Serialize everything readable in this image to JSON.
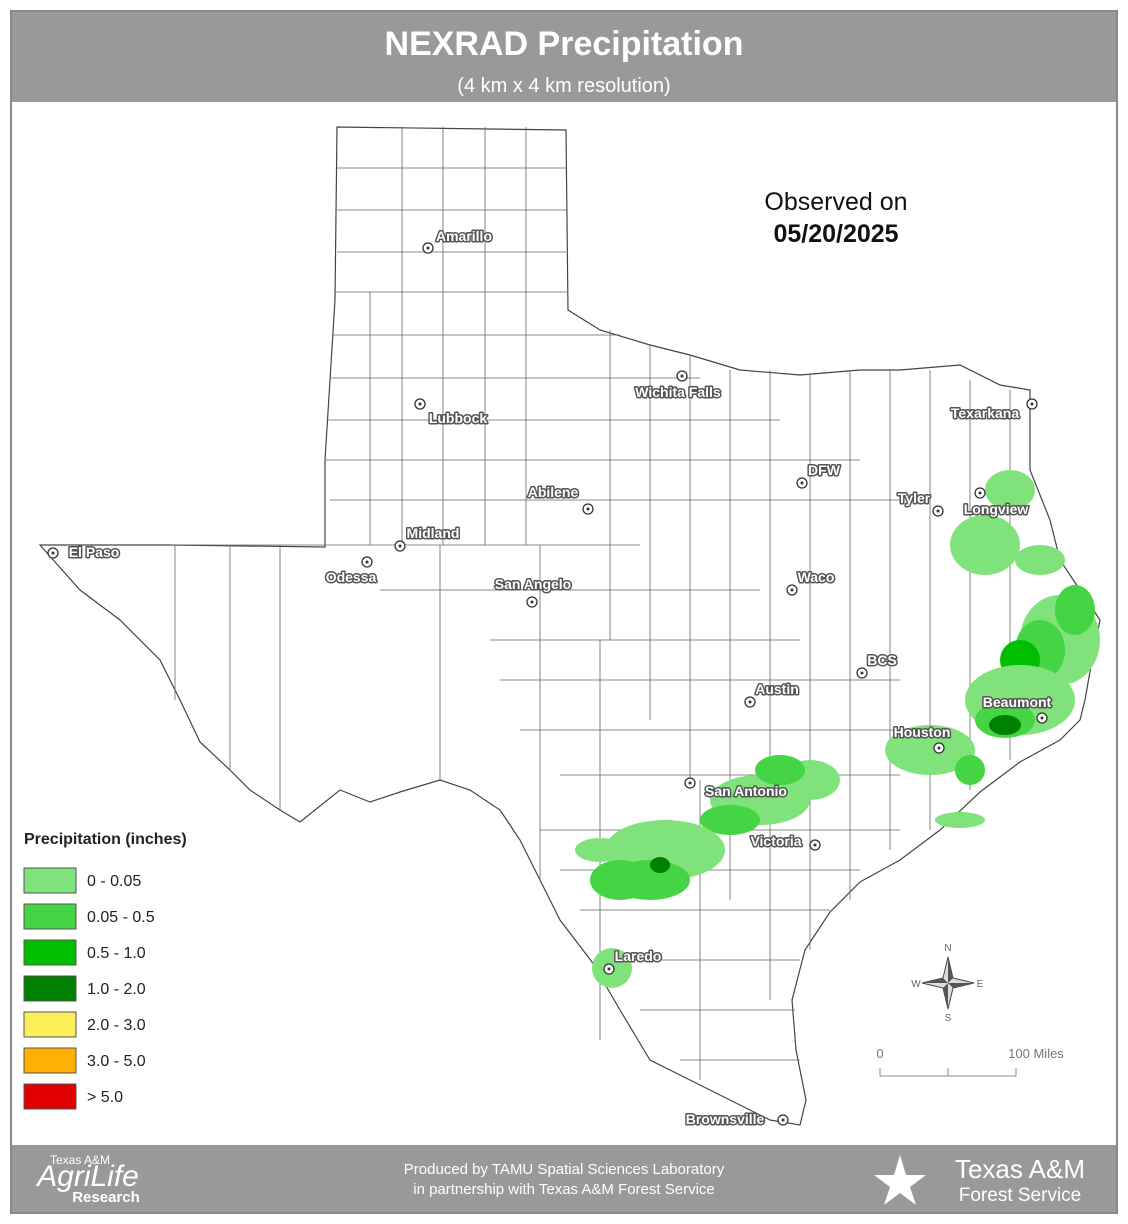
{
  "header": {
    "title": "NEXRAD Precipitation",
    "subtitle": "(4 km x 4 km resolution)"
  },
  "observed": {
    "label": "Observed on",
    "date": "05/20/2025"
  },
  "cities": [
    "Amarillo",
    "Lubbock",
    "Wichita Falls",
    "Texarkana",
    "DFW",
    "Tyler",
    "Longview",
    "Abilene",
    "Midland",
    "Odessa",
    "El Paso",
    "San Angelo",
    "Waco",
    "BCS",
    "Austin",
    "Beaumont",
    "Houston",
    "San Antonio",
    "Victoria",
    "Laredo",
    "Brownsville"
  ],
  "legend": {
    "title": "Precipitation (inches)",
    "items": [
      {
        "label": "0 - 0.05",
        "color": "#80e27a"
      },
      {
        "label": "0.05 - 0.5",
        "color": "#44d444"
      },
      {
        "label": "0.5 - 1.0",
        "color": "#00bf00"
      },
      {
        "label": "1.0 - 2.0",
        "color": "#008000"
      },
      {
        "label": "2.0 - 3.0",
        "color": "#fbee5a"
      },
      {
        "label": "3.0 - 5.0",
        "color": "#ffb000"
      },
      {
        "label": "> 5.0",
        "color": "#e00000"
      }
    ]
  },
  "compass": {
    "n": "N",
    "e": "E",
    "s": "S",
    "w": "W"
  },
  "scale": {
    "start": "0",
    "end": "100 Miles"
  },
  "footer": {
    "line1": "Produced by TAMU Spatial Sciences Laboratory",
    "line2": "in partnership with Texas A&M Forest Service"
  },
  "logos": {
    "agrilife_top": "Texas A&M",
    "agrilife_main": "AgriLife",
    "agrilife_bottom": "Research",
    "forest_top": "Texas A&M",
    "forest_bottom": "Forest Service"
  }
}
